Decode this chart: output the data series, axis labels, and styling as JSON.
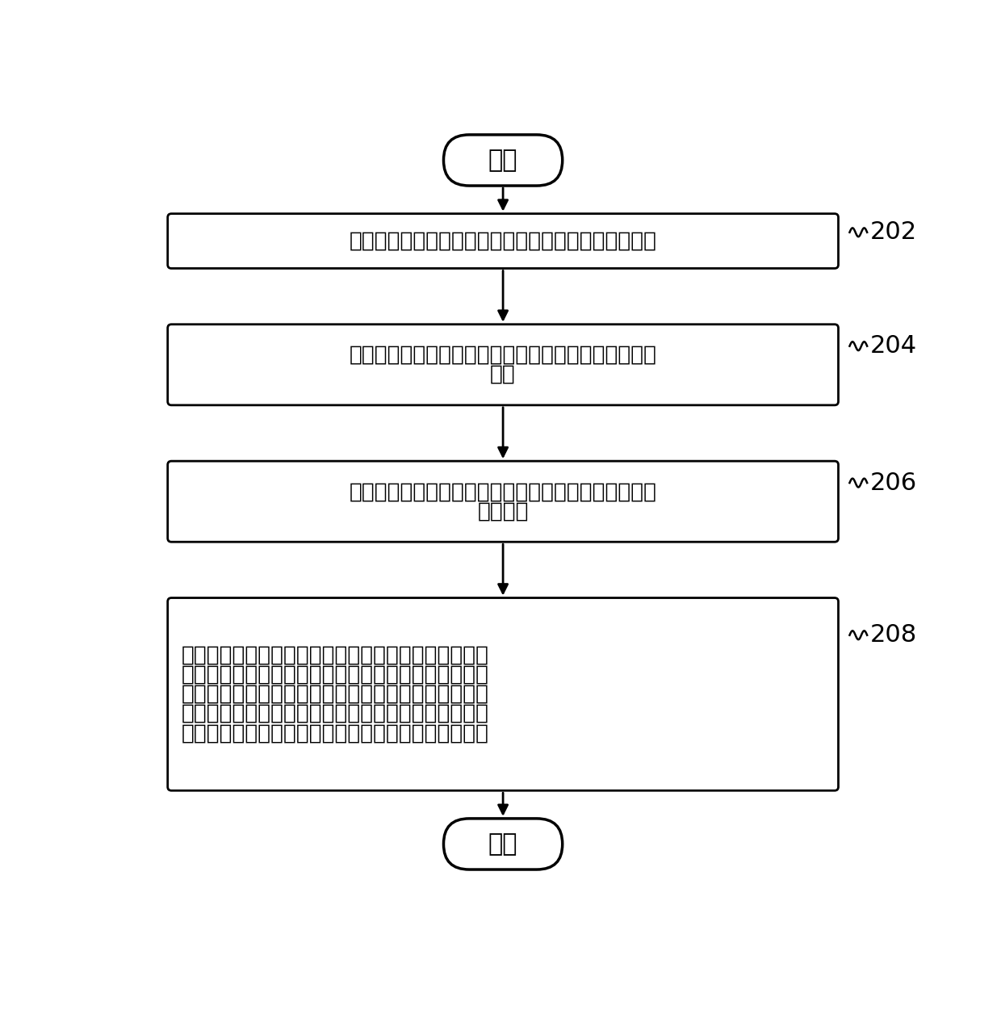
{
  "start_text": "开始",
  "end_text": "结束",
  "boxes": [
    {
      "id": 202,
      "label": "202",
      "lines": [
        "接收空调器的开启指令，控制空调器开始运行，并计时"
      ]
    },
    {
      "id": 204,
      "label": "204",
      "lines": [
        "获取室外环境温度，根据室外环境温度确定相应的补偿",
        "温度"
      ]
    },
    {
      "id": 206,
      "label": "206",
      "lines": [
        "第一预设时间后，获取人体的体感温度，以及获取室内",
        "环境温度"
      ]
    },
    {
      "id": 208,
      "label": "208",
      "lines": [
        "在体感温度与设定温度的差值的绝对值大于或等于第一",
        "阀值时，控制压缩机降低频率或停机；在体感温度与设",
        "定温度的差值的绝对值小于第一阀值，且室内环境温度",
        "与设定温度的差值的绝对值大于或等于补偿温度时，控",
        "制压缩机降低频率或停机；其中补偿温度大于第一阀值"
      ]
    }
  ],
  "background_color": "#ffffff",
  "box_edge_color": "#000000",
  "box_fill_color": "#ffffff",
  "text_color": "#000000",
  "arrow_color": "#000000"
}
